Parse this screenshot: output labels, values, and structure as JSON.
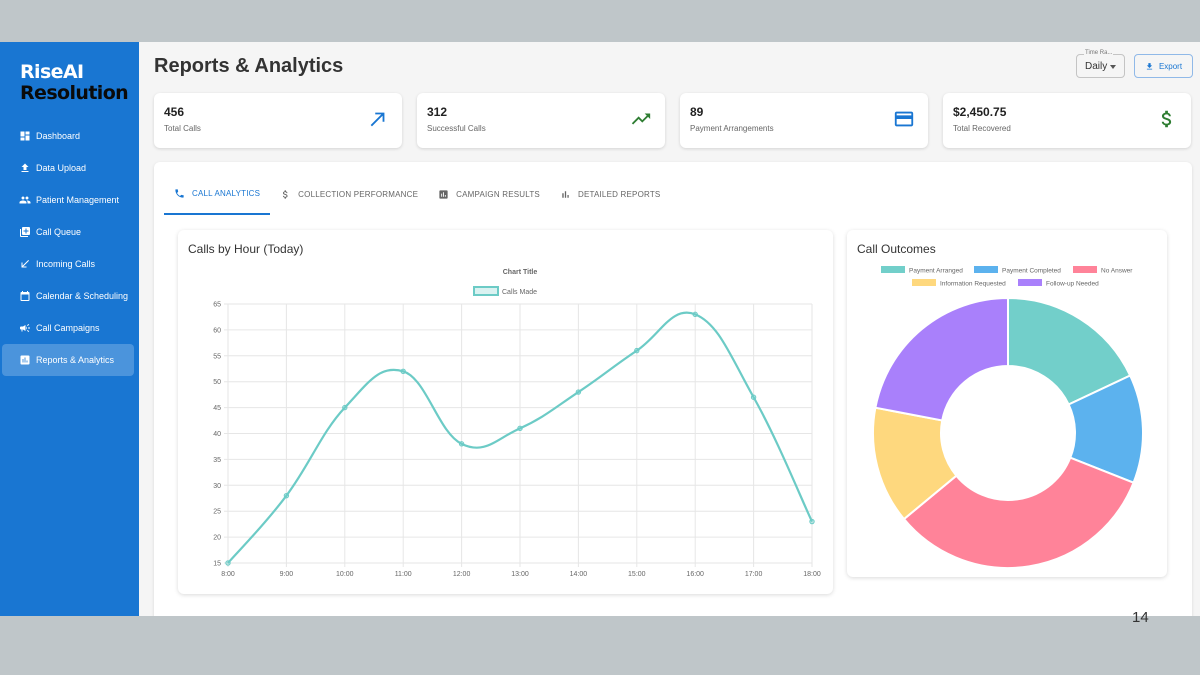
{
  "brand": {
    "line1": "RiseAI",
    "line2": "Resolution"
  },
  "sidebar": {
    "items": [
      {
        "label": "Dashboard",
        "icon": "dashboard-icon",
        "active": false
      },
      {
        "label": "Data Upload",
        "icon": "upload-icon",
        "active": false
      },
      {
        "label": "Patient Management",
        "icon": "people-icon",
        "active": false
      },
      {
        "label": "Call Queue",
        "icon": "queue-icon",
        "active": false
      },
      {
        "label": "Incoming Calls",
        "icon": "incoming-call-icon",
        "active": false
      },
      {
        "label": "Calendar & Scheduling",
        "icon": "calendar-icon",
        "active": false
      },
      {
        "label": "Call Campaigns",
        "icon": "campaign-icon",
        "active": false
      },
      {
        "label": "Reports & Analytics",
        "icon": "bar-chart-icon",
        "active": true
      }
    ]
  },
  "header": {
    "title": "Reports & Analytics",
    "time_range_label": "Time Ra...",
    "time_range_value": "Daily",
    "export_label": "Export"
  },
  "stats": [
    {
      "value": "456",
      "label": "Total Calls",
      "icon": "arrow-up-right-icon",
      "color": "#1976d2"
    },
    {
      "value": "312",
      "label": "Successful Calls",
      "icon": "trending-up-icon",
      "color": "#2e7d32"
    },
    {
      "value": "89",
      "label": "Payment Arrangements",
      "icon": "credit-card-icon",
      "color": "#1976d2"
    },
    {
      "value": "$2,450.75",
      "label": "Total Recovered",
      "icon": "dollar-icon",
      "color": "#2e7d32"
    }
  ],
  "tabs": [
    {
      "label": "CALL ANALYTICS",
      "icon": "phone-icon",
      "active": true
    },
    {
      "label": "COLLECTION PERFORMANCE",
      "icon": "dollar-icon",
      "active": false
    },
    {
      "label": "CAMPAIGN RESULTS",
      "icon": "assessment-icon",
      "active": false
    },
    {
      "label": "DETAILED REPORTS",
      "icon": "bar-chart-icon",
      "active": false
    }
  ],
  "line_card": {
    "title": "Calls by Hour (Today)"
  },
  "donut_card": {
    "title": "Call Outcomes"
  },
  "chart_data": [
    {
      "type": "line",
      "title": "Chart Title",
      "x": [
        "8:00",
        "9:00",
        "10:00",
        "11:00",
        "12:00",
        "13:00",
        "14:00",
        "15:00",
        "16:00",
        "17:00",
        "18:00"
      ],
      "series": [
        {
          "name": "Calls Made",
          "values": [
            15,
            28,
            45,
            52,
            38,
            41,
            48,
            56,
            63,
            47,
            23
          ],
          "color": "#6ccbc6"
        }
      ],
      "ylim": [
        15,
        65
      ],
      "yticks": [
        15,
        20,
        25,
        30,
        35,
        40,
        45,
        50,
        55,
        60,
        65
      ],
      "grid": true,
      "legend": "top"
    },
    {
      "type": "pie",
      "subtype": "donut",
      "categories": [
        "Payment Arranged",
        "Payment Completed",
        "No Answer",
        "Information Requested",
        "Follow-up Needed"
      ],
      "values": [
        18,
        13,
        33,
        14,
        22
      ],
      "colors": [
        "#72cfca",
        "#5cb2ee",
        "#ff8399",
        "#fed87e",
        "#a980fb"
      ],
      "legend": "top"
    }
  ],
  "page_number": "14"
}
